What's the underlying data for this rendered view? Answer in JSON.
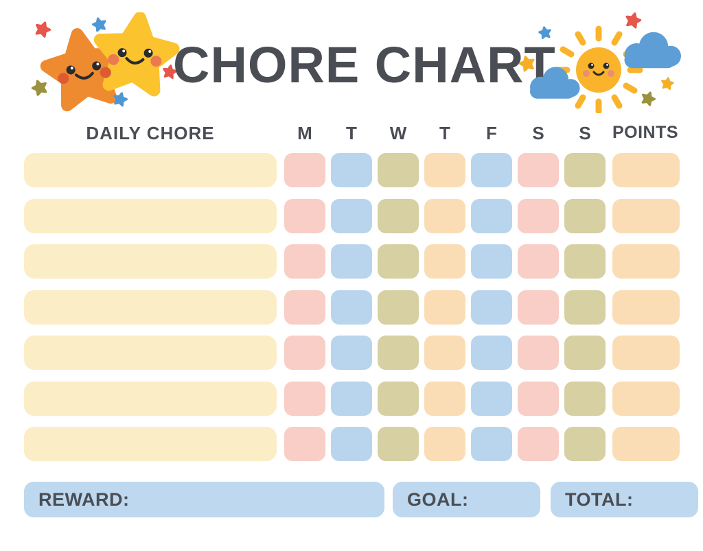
{
  "title": "CHORE CHART",
  "header": {
    "chore_label": "DAILY CHORE",
    "days": [
      "M",
      "T",
      "W",
      "T",
      "F",
      "S",
      "S"
    ],
    "points_label": "POINTS"
  },
  "grid": {
    "rows": 7,
    "chore_value": "",
    "day_pattern": [
      "pink",
      "blue",
      "olive",
      "peach",
      "blue",
      "pink",
      "olive"
    ],
    "points_color": "peach",
    "points_value": ""
  },
  "footer": {
    "reward_label": "REWARD:",
    "reward_value": "",
    "goal_label": "GOAL:",
    "goal_value": "",
    "total_label": "TOTAL:",
    "total_value": ""
  },
  "icons": {
    "left_group": [
      "orange-star-face-icon",
      "yellow-star-face-icon",
      "red-sparkle-star-icon",
      "blue-sparkle-star-icon",
      "olive-sparkle-star-icon"
    ],
    "right_group": [
      "sun-face-icon",
      "cloud-icon",
      "cloud-icon",
      "red-sparkle-star-icon",
      "blue-sparkle-star-icon",
      "yellow-sparkle-star-icon",
      "olive-sparkle-star-icon"
    ]
  },
  "colors": {
    "text": "#4A4E54",
    "cream": "#FBEDC6",
    "pink": "#F8CEC6",
    "blue": "#B9D5EE",
    "olive": "#D6D0A2",
    "peach": "#FBDDB5",
    "footerblue": "#BDD8EF",
    "starorange": "#EE8A30",
    "staryellow": "#FBC32E",
    "sun": "#F9B42C",
    "cloud": "#5E9ED7",
    "red": "#E6564A",
    "smallblue": "#4E97D3",
    "smallolive": "#9A923E",
    "smallyellow": "#F6AF25",
    "eye": "#2B2B2B",
    "cheekorange": "#DD5B33",
    "cheekyellow": "#EC7A50",
    "cheeksun": "#E98D76"
  }
}
